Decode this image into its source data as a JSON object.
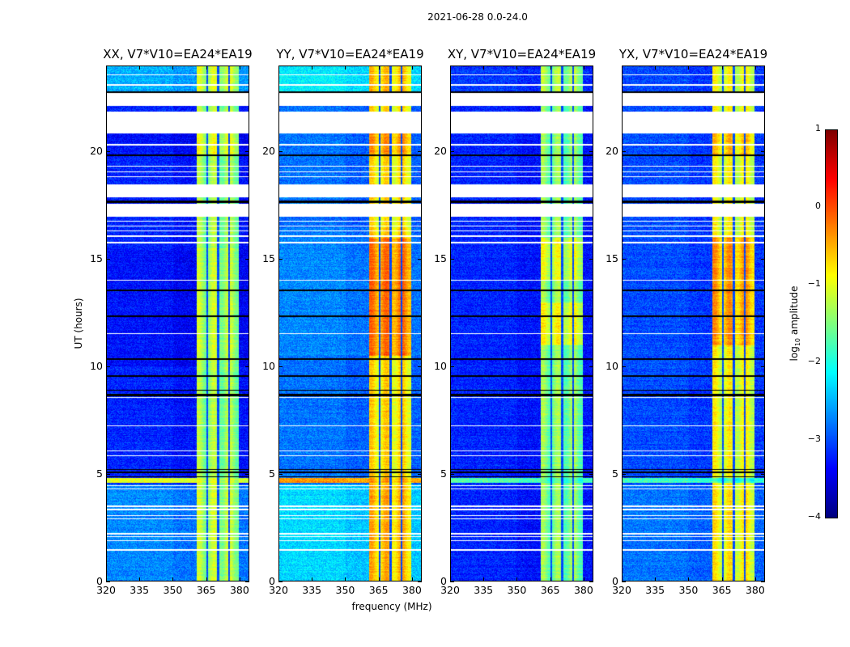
{
  "suptitle": "2021-06-28 0.0-24.0",
  "chart_data": {
    "type": "heatmap",
    "xlabel": "frequency (MHz)",
    "ylabel": "UT (hours)",
    "xlim": [
      320,
      384.4
    ],
    "ylim": [
      0,
      24
    ],
    "xticks": [
      "320",
      "335",
      "350",
      "365",
      "380"
    ],
    "xtick_values": [
      320,
      335,
      350,
      365,
      380
    ],
    "yticks": [
      "0",
      "5",
      "10",
      "15",
      "20"
    ],
    "ytick_values": [
      0,
      5,
      10,
      15,
      20
    ],
    "band_mhz": [
      360.7,
      380
    ],
    "band_gaps_mhz": [
      365.6,
      370.6,
      375.6
    ],
    "flagged_white_hours": [
      [
        22.14,
        22.74
      ],
      [
        20.86,
        21.9
      ],
      [
        17.9,
        18.5
      ],
      [
        17.0,
        17.6
      ],
      [
        23.58,
        23.64
      ],
      [
        23.1,
        23.16
      ],
      [
        4.4,
        4.46
      ],
      [
        4.25,
        4.3
      ],
      [
        3.45,
        3.5
      ],
      [
        3.3,
        3.36
      ],
      [
        3.02,
        3.07
      ],
      [
        2.88,
        2.92
      ],
      [
        2.16,
        2.22
      ],
      [
        2.02,
        2.07
      ],
      [
        1.86,
        1.9
      ],
      [
        1.4,
        1.46
      ],
      [
        16.05,
        16.1
      ],
      [
        16.3,
        16.35
      ],
      [
        16.52,
        16.56
      ],
      [
        16.75,
        16.8
      ],
      [
        14.0,
        14.05
      ],
      [
        15.75,
        15.8
      ],
      [
        19.32,
        19.36
      ],
      [
        19.05,
        19.1
      ],
      [
        18.82,
        18.86
      ],
      [
        20.32,
        20.36
      ],
      [
        7.22,
        7.26
      ],
      [
        6.02,
        6.06
      ],
      [
        5.82,
        5.86
      ],
      [
        8.52,
        8.56
      ],
      [
        11.52,
        11.56
      ]
    ],
    "low_black_hours": [
      [
        22.74,
        22.82
      ],
      [
        19.8,
        19.9
      ],
      [
        17.62,
        17.72
      ],
      [
        13.5,
        13.58
      ],
      [
        12.3,
        12.38
      ],
      [
        10.3,
        10.38
      ],
      [
        9.52,
        9.6
      ],
      [
        8.62,
        8.72
      ],
      [
        8.86,
        8.92
      ],
      [
        5.16,
        5.22
      ],
      [
        5.02,
        5.08
      ],
      [
        4.82,
        4.86
      ]
    ],
    "panels": [
      {
        "title": "XX, V7*V10=EA24*EA19",
        "bg": -3.3,
        "band": -1.4,
        "segments": [
          [
            22.8,
            24,
            -2.6,
            -1.2
          ],
          [
            0,
            4.5,
            -2.8,
            -1.3
          ],
          [
            4.55,
            4.8,
            -1.1,
            -1.1
          ],
          [
            10,
            15.5,
            -3.4,
            -1.3
          ],
          [
            19.9,
            21,
            -3.4,
            -1.1
          ]
        ]
      },
      {
        "title": "YY, V7*V10=EA24*EA19",
        "bg": -2.9,
        "band": -0.8,
        "segments": [
          [
            22.8,
            24,
            -2.3,
            -0.7
          ],
          [
            0,
            4.5,
            -2.4,
            -0.6
          ],
          [
            4.55,
            4.8,
            -0.45,
            -0.45
          ],
          [
            10.5,
            16,
            -2.8,
            -0.3
          ],
          [
            19.9,
            21,
            -2.9,
            -0.5
          ]
        ]
      },
      {
        "title": "XY, V7*V10=EA24*EA19",
        "bg": -3.3,
        "band": -1.5,
        "segments": [
          [
            4.55,
            4.8,
            -1.8,
            -1.8
          ],
          [
            11,
            13,
            -3.3,
            -1.0
          ],
          [
            14,
            16,
            -3.3,
            -1.1
          ],
          [
            22.8,
            24,
            -3.2,
            -1.4
          ]
        ]
      },
      {
        "title": "YX, V7*V10=EA24*EA19",
        "bg": -3.1,
        "band": -1.0,
        "segments": [
          [
            11,
            16,
            -3.1,
            -0.5
          ],
          [
            0,
            4.5,
            -2.9,
            -0.9
          ],
          [
            4.55,
            4.8,
            -1.9,
            -1.9
          ],
          [
            19.9,
            21,
            -3.1,
            -0.7
          ]
        ]
      }
    ],
    "colorbar": {
      "label_base": "log",
      "label_sub": "10",
      "label_rest": " amplitude",
      "range": [
        -4,
        1
      ],
      "ticks": [
        "−4",
        "−3",
        "−2",
        "−1",
        "0",
        "1"
      ],
      "tick_values": [
        -4,
        -3,
        -2,
        -1,
        0,
        1
      ],
      "colormap": "jet"
    }
  }
}
